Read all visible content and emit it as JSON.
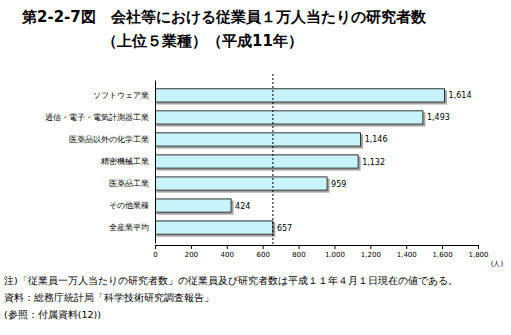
{
  "chart_data": {
    "type": "bar",
    "orientation": "horizontal",
    "title": "第2-2-7図　会社等における従業員１万人当たりの研究者数",
    "subtitle": "（上位５業種）（平成11年）",
    "categories": [
      "ソフトウェア業",
      "通信・電子・電気計測器工業",
      "医薬品以外の化学工業",
      "精密機械工業",
      "医薬品工業",
      "その他業種",
      "全産業平均"
    ],
    "values": [
      1614,
      1493,
      1146,
      1132,
      959,
      424,
      657
    ],
    "value_labels": [
      "1,614",
      "1,493",
      "1,146",
      "1,132",
      "959",
      "424",
      "657"
    ],
    "data_labels": true,
    "color": "#c9f3fb",
    "average_line": 657,
    "xlim": [
      0,
      1800
    ],
    "xticks": [
      0,
      200,
      400,
      600,
      800,
      {
        "value": 1000,
        "label": "1,000"
      },
      {
        "value": 1200,
        "label": "1,200"
      },
      {
        "value": 1400,
        "label": "1,400"
      },
      {
        "value": 1600,
        "label": "1,600"
      },
      {
        "value": 1800,
        "label": "1,800"
      }
    ],
    "x_label": "(人)",
    "grid": false,
    "notes": [
      "注)「従業員一万人当たりの研究者数」の従業員及び研究者数は平成１１年４月１日現在の値である。",
      "資料：総務庁統計局「科学技術研究調査報告」",
      "(参照：付属資料(12))"
    ]
  }
}
